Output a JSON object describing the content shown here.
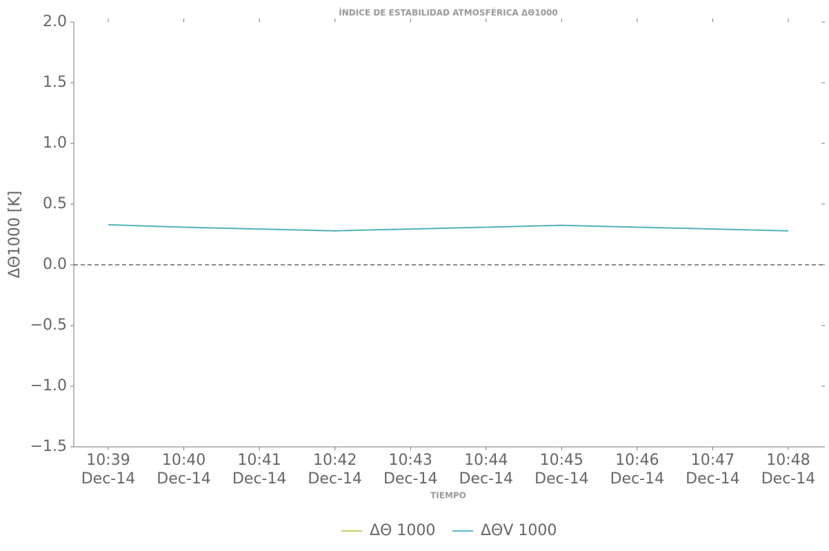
{
  "chart_data": {
    "type": "line",
    "title": "ÍNDICE DE ESTABILIDAD ATMOSFÉRICA ΔΘ1000",
    "x_label": "TIEMPO",
    "y_label": "ΔΘ1000 [K]",
    "categories": [
      "10:39\nDec-14",
      "10:40\nDec-14",
      "10:41\nDec-14",
      "10:42\nDec-14",
      "10:43\nDec-14",
      "10:44\nDec-14",
      "10:45\nDec-14",
      "10:46\nDec-14",
      "10:47\nDec-14",
      "10:48\nDec-14"
    ],
    "series": [
      {
        "name": "ΔΘ 1000",
        "color": "#c9cc5a",
        "values": [
          0.33,
          0.31,
          0.295,
          0.28,
          0.295,
          0.31,
          0.325,
          0.31,
          0.295,
          0.28
        ]
      },
      {
        "name": "ΔΘV 1000",
        "color": "#56b4c6",
        "values": [
          0.33,
          0.31,
          0.295,
          0.28,
          0.295,
          0.31,
          0.325,
          0.31,
          0.295,
          0.28
        ]
      }
    ],
    "ylim": [
      -1.5,
      2
    ],
    "yticks": [
      {
        "value": -1.5,
        "label": "−1.5"
      },
      {
        "value": -1,
        "label": "−1.0"
      },
      {
        "value": -0.5,
        "label": "−0.5"
      },
      {
        "value": 0,
        "label": "0.0"
      },
      0.5,
      {
        "value": 1,
        "label": "1.0"
      },
      1.5,
      {
        "value": 2,
        "label": "2.0"
      }
    ],
    "reference_line": 0,
    "legend": "bottom"
  }
}
